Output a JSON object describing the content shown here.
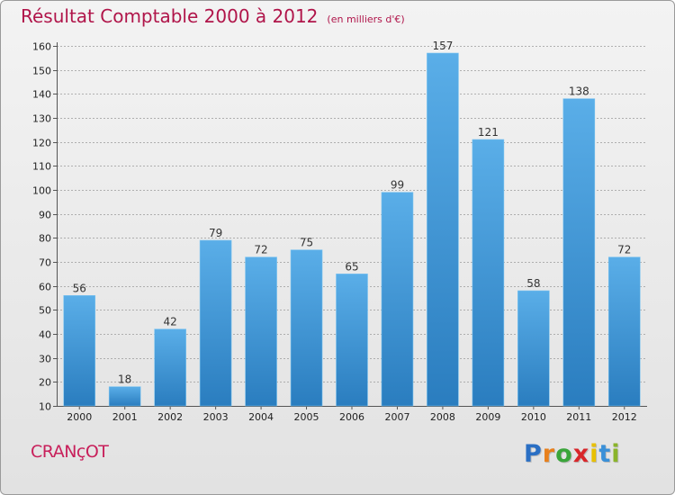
{
  "title": "Résultat Comptable 2000 à 2012",
  "subtitle": "(en milliers d'€)",
  "city": "CRANçOT",
  "logo": {
    "letters": [
      "P",
      "r",
      "o",
      "x",
      "i",
      "t",
      "i"
    ],
    "colors": [
      "#2a6fc4",
      "#e8801c",
      "#3aa53a",
      "#d8262a",
      "#e8c000",
      "#3a90d8",
      "#8ab42a"
    ]
  },
  "colors": {
    "title": "#b0154a",
    "bar_top": "#5aaee8",
    "bar_bottom": "#2a7dbf",
    "grid": "#9a9a9a"
  },
  "chart_data": {
    "type": "bar",
    "categories": [
      "2000",
      "2001",
      "2002",
      "2003",
      "2004",
      "2005",
      "2006",
      "2007",
      "2008",
      "2009",
      "2010",
      "2011",
      "2012"
    ],
    "values": [
      56,
      18,
      42,
      79,
      72,
      75,
      65,
      99,
      157,
      121,
      58,
      138,
      72
    ],
    "ylim": [
      10,
      160
    ],
    "yticks": [
      10,
      20,
      30,
      40,
      50,
      60,
      70,
      80,
      90,
      100,
      110,
      120,
      130,
      140,
      150,
      160
    ],
    "grid": "horizontal dashed",
    "data_labels": true
  }
}
